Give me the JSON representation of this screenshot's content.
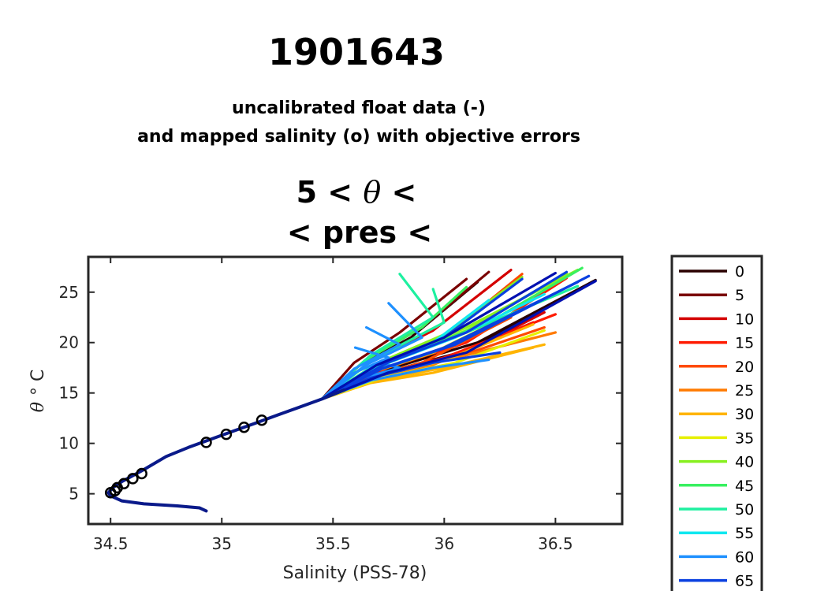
{
  "chart_data": {
    "type": "line",
    "title": "1901643",
    "subtitle_lines": [
      "uncalibrated float data (-)",
      "and mapped salinity (o) with objective errors"
    ],
    "panel_title_line1_pre": "5 < ",
    "panel_title_theta": "θ",
    "panel_title_line1_post": " <",
    "panel_title_line2": "< pres <",
    "xlabel": "Salinity (PSS-78)",
    "ylabel_symbol": "θ",
    "ylabel_unit": "° C",
    "xlim": [
      34.4,
      36.8
    ],
    "ylim": [
      2.0,
      28.5
    ],
    "xticks": [
      34.5,
      35,
      35.5,
      36,
      36.5
    ],
    "xtick_labels": [
      "34.5",
      "35",
      "35.5",
      "36",
      "36.5"
    ],
    "yticks": [
      5,
      10,
      15,
      20,
      25
    ],
    "ytick_labels": [
      "5",
      "10",
      "15",
      "20",
      "25"
    ],
    "grid": false,
    "legend_placement": "right-outside",
    "legend_title": "",
    "legend": [
      {
        "label": "0",
        "color": "#2a0000"
      },
      {
        "label": "5",
        "color": "#7a0000"
      },
      {
        "label": "10",
        "color": "#d40000"
      },
      {
        "label": "15",
        "color": "#ff1a00"
      },
      {
        "label": "20",
        "color": "#ff4a00"
      },
      {
        "label": "25",
        "color": "#ff7a00"
      },
      {
        "label": "30",
        "color": "#ffb400"
      },
      {
        "label": "35",
        "color": "#e6f000"
      },
      {
        "label": "40",
        "color": "#88f020"
      },
      {
        "label": "45",
        "color": "#38f060"
      },
      {
        "label": "50",
        "color": "#1ef0a0"
      },
      {
        "label": "55",
        "color": "#10e8f0"
      },
      {
        "label": "60",
        "color": "#1e90ff"
      },
      {
        "label": "65",
        "color": "#0a40e0"
      }
    ],
    "deep_profile": {
      "name": "uncalibrated float data",
      "x": [
        34.93,
        34.9,
        34.8,
        34.65,
        34.55,
        34.5,
        34.49,
        34.51,
        34.55,
        34.6,
        34.65,
        34.75,
        34.85,
        34.95,
        35.05,
        35.15,
        35.25,
        35.35,
        35.45,
        35.55
      ],
      "y": [
        3.3,
        3.6,
        3.8,
        4.0,
        4.3,
        4.8,
        5.1,
        5.6,
        6.2,
        6.8,
        7.4,
        8.7,
        9.6,
        10.4,
        11.2,
        12.0,
        12.8,
        13.6,
        14.4,
        15.3
      ]
    },
    "mapped_salinity": {
      "name": "mapped salinity",
      "x": [
        34.5,
        34.52,
        34.53,
        34.56,
        34.6,
        34.64,
        34.93,
        35.02,
        35.1,
        35.18
      ],
      "y": [
        5.1,
        5.3,
        5.6,
        6.0,
        6.5,
        7.0,
        10.1,
        10.9,
        11.6,
        12.3
      ]
    },
    "profiles": [
      {
        "cycle": 0,
        "tip": [
          36.68,
          26.2
        ],
        "end": [
          36.15,
          20.0
        ]
      },
      {
        "cycle": 2,
        "tip": [
          36.65,
          25.8
        ],
        "end": [
          36.1,
          19.2
        ]
      },
      {
        "cycle": 4,
        "tip": [
          36.15,
          26.0
        ],
        "end": [
          35.85,
          20.5
        ]
      },
      {
        "cycle": 6,
        "tip": [
          36.1,
          26.3
        ],
        "end": [
          35.8,
          21.0
        ]
      },
      {
        "cycle": 8,
        "tip": [
          36.2,
          27.0
        ],
        "end": [
          35.9,
          21.5
        ]
      },
      {
        "cycle": 10,
        "tip": [
          36.45,
          23.0
        ],
        "end": [
          36.1,
          19.0
        ]
      },
      {
        "cycle": 12,
        "tip": [
          36.3,
          27.2
        ],
        "end": [
          35.95,
          21.2
        ]
      },
      {
        "cycle": 14,
        "tip": [
          36.4,
          22.0
        ],
        "end": [
          36.05,
          18.8
        ]
      },
      {
        "cycle": 16,
        "tip": [
          36.5,
          22.8
        ],
        "end": [
          36.0,
          18.5
        ]
      },
      {
        "cycle": 18,
        "tip": [
          36.55,
          26.4
        ],
        "end": [
          36.1,
          20.0
        ]
      },
      {
        "cycle": 20,
        "tip": [
          36.3,
          22.5
        ],
        "end": [
          35.9,
          18.0
        ]
      },
      {
        "cycle": 22,
        "tip": [
          36.35,
          26.8
        ],
        "end": [
          36.0,
          20.5
        ]
      },
      {
        "cycle": 24,
        "tip": [
          36.45,
          21.5
        ],
        "end": [
          36.05,
          18.5
        ]
      },
      {
        "cycle": 26,
        "tip": [
          36.25,
          20.5
        ],
        "end": [
          35.95,
          17.8
        ]
      },
      {
        "cycle": 28,
        "tip": [
          36.5,
          21.0
        ],
        "end": [
          36.0,
          18.2
        ]
      },
      {
        "cycle": 30,
        "tip": [
          36.45,
          19.8
        ],
        "end": [
          36.0,
          17.5
        ]
      },
      {
        "cycle": 32,
        "tip": [
          36.4,
          19.5
        ],
        "end": [
          35.95,
          17.0
        ]
      },
      {
        "cycle": 34,
        "tip": [
          36.4,
          21.8
        ],
        "end": [
          36.0,
          18.2
        ]
      },
      {
        "cycle": 36,
        "tip": [
          36.45,
          21.2
        ],
        "end": [
          36.05,
          18.0
        ]
      },
      {
        "cycle": 38,
        "tip": [
          36.3,
          22.8
        ],
        "end": [
          35.95,
          19.0
        ]
      },
      {
        "cycle": 40,
        "tip": [
          36.35,
          26.5
        ],
        "end": [
          36.0,
          20.8
        ]
      },
      {
        "cycle": 42,
        "tip": [
          36.6,
          27.2
        ],
        "end": [
          36.1,
          21.5
        ]
      },
      {
        "cycle": 44,
        "tip": [
          36.55,
          26.9
        ],
        "end": [
          36.1,
          21.2
        ]
      },
      {
        "cycle": 46,
        "tip": [
          36.1,
          25.5
        ],
        "end": [
          35.9,
          21.5
        ]
      },
      {
        "cycle": 48,
        "tip": [
          36.62,
          27.4
        ],
        "end": [
          36.2,
          22.0
        ]
      },
      {
        "cycle": 50,
        "tip": [
          35.8,
          26.8
        ],
        "end": [
          35.95,
          22.5
        ]
      },
      {
        "cycle": 52,
        "tip": [
          35.95,
          25.3
        ],
        "end": [
          36.0,
          22.0
        ]
      },
      {
        "cycle": 54,
        "tip": [
          36.6,
          25.6
        ],
        "end": [
          36.1,
          21.0
        ]
      },
      {
        "cycle": 56,
        "tip": [
          36.45,
          24.8
        ],
        "end": [
          36.05,
          20.5
        ]
      },
      {
        "cycle": 58,
        "tip": [
          36.2,
          24.2
        ],
        "end": [
          35.95,
          20.0
        ]
      },
      {
        "cycle": 60,
        "tip": [
          35.75,
          23.9
        ],
        "end": [
          35.9,
          20.5
        ]
      },
      {
        "cycle": 61,
        "tip": [
          35.65,
          21.5
        ],
        "end": [
          35.8,
          19.8
        ]
      },
      {
        "cycle": 62,
        "tip": [
          35.6,
          19.5
        ],
        "end": [
          35.75,
          18.5
        ]
      },
      {
        "cycle": 63,
        "tip": [
          35.7,
          18.0
        ],
        "end": [
          35.8,
          17.5
        ]
      },
      {
        "cycle": 64,
        "tip": [
          36.2,
          18.3
        ],
        "end": [
          35.95,
          17.5
        ]
      },
      {
        "cycle": 65,
        "tip": [
          36.25,
          19.0
        ],
        "end": [
          35.95,
          18.0
        ]
      },
      {
        "cycle": 66,
        "tip": [
          36.35,
          26.3
        ],
        "end": [
          36.0,
          20.5
        ]
      },
      {
        "cycle": 67,
        "tip": [
          36.55,
          27.0
        ],
        "end": [
          36.1,
          21.0
        ]
      },
      {
        "cycle": 68,
        "tip": [
          36.65,
          26.6
        ],
        "end": [
          36.05,
          19.8
        ]
      },
      {
        "cycle": 69,
        "tip": [
          36.6,
          26.0
        ],
        "end": [
          36.0,
          19.5
        ]
      },
      {
        "cycle": 70,
        "tip": [
          36.5,
          26.9
        ],
        "end": [
          36.0,
          20.5
        ]
      },
      {
        "cycle": 71,
        "tip": [
          36.68,
          26.1
        ],
        "end": [
          36.1,
          19.0
        ]
      }
    ]
  }
}
